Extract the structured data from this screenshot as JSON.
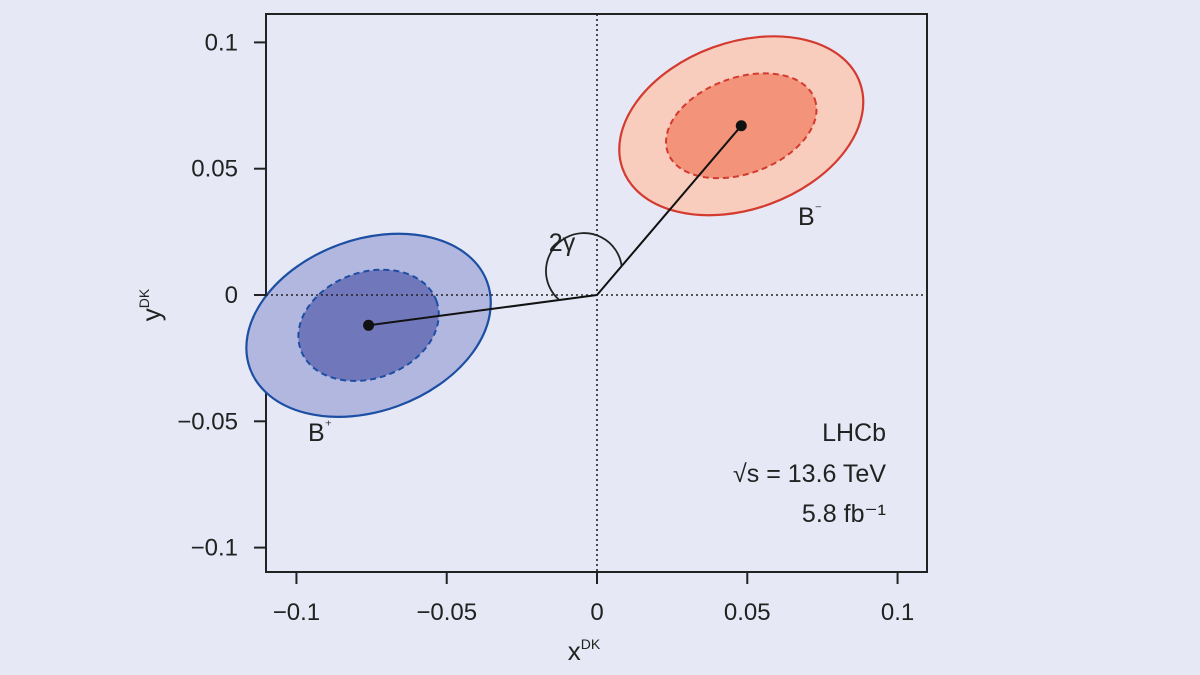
{
  "chart_data": {
    "type": "scatter",
    "title": "",
    "xlabel": {
      "main": "x",
      "sup": "DK"
    },
    "ylabel": {
      "main": "y",
      "sup": "DK"
    },
    "xlim": [
      -0.11,
      0.11
    ],
    "ylim": [
      -0.11,
      0.11
    ],
    "x_ticks": [
      -0.1,
      -0.05,
      0,
      0.05,
      0.1
    ],
    "x_tick_labels": [
      "−0.1",
      "−0.05",
      "0",
      "0.05",
      "0.1"
    ],
    "y_ticks": [
      0.1,
      0.05,
      0,
      -0.05,
      -0.1
    ],
    "y_tick_labels": [
      "0.1",
      "0.05",
      "0",
      "−0.05",
      "−0.1"
    ],
    "grid": false,
    "reference_lines": {
      "x": 0,
      "y": 0,
      "style": "dotted"
    },
    "series": [
      {
        "name": "B⁺",
        "center": {
          "x": -0.076,
          "y": -0.012
        },
        "contours": [
          {
            "level": "outer",
            "cx": -0.076,
            "cy": -0.012,
            "rx": 0.042,
            "ry": 0.034,
            "angle_deg": -20,
            "fill": "#b1b7df",
            "stroke": "#1c4fa3",
            "dashed": false
          },
          {
            "level": "inner",
            "cx": -0.076,
            "cy": -0.012,
            "rx": 0.024,
            "ry": 0.021,
            "angle_deg": -20,
            "fill": "#7177bb",
            "stroke": "#1c4fa3",
            "dashed": true
          }
        ]
      },
      {
        "name": "B⁻",
        "center": {
          "x": 0.048,
          "y": 0.067
        },
        "contours": [
          {
            "level": "outer",
            "cx": 0.048,
            "cy": 0.067,
            "rx": 0.042,
            "ry": 0.033,
            "angle_deg": -20,
            "fill": "#f9cdbd",
            "stroke": "#d33a30",
            "dashed": false
          },
          {
            "level": "inner",
            "cx": 0.048,
            "cy": 0.067,
            "rx": 0.026,
            "ry": 0.019,
            "angle_deg": -20,
            "fill": "#f2937a",
            "stroke": "#d33a30",
            "dashed": true
          }
        ]
      }
    ],
    "annotations": {
      "angle_label": "2γ",
      "experiment": "LHCb",
      "energy": "√s = 13.6 TeV",
      "luminosity": "5.8 fb⁻¹"
    },
    "colors": {
      "b_plus": "#1c4fa3",
      "b_minus": "#d33a30",
      "background": "#e6e9f5"
    }
  }
}
